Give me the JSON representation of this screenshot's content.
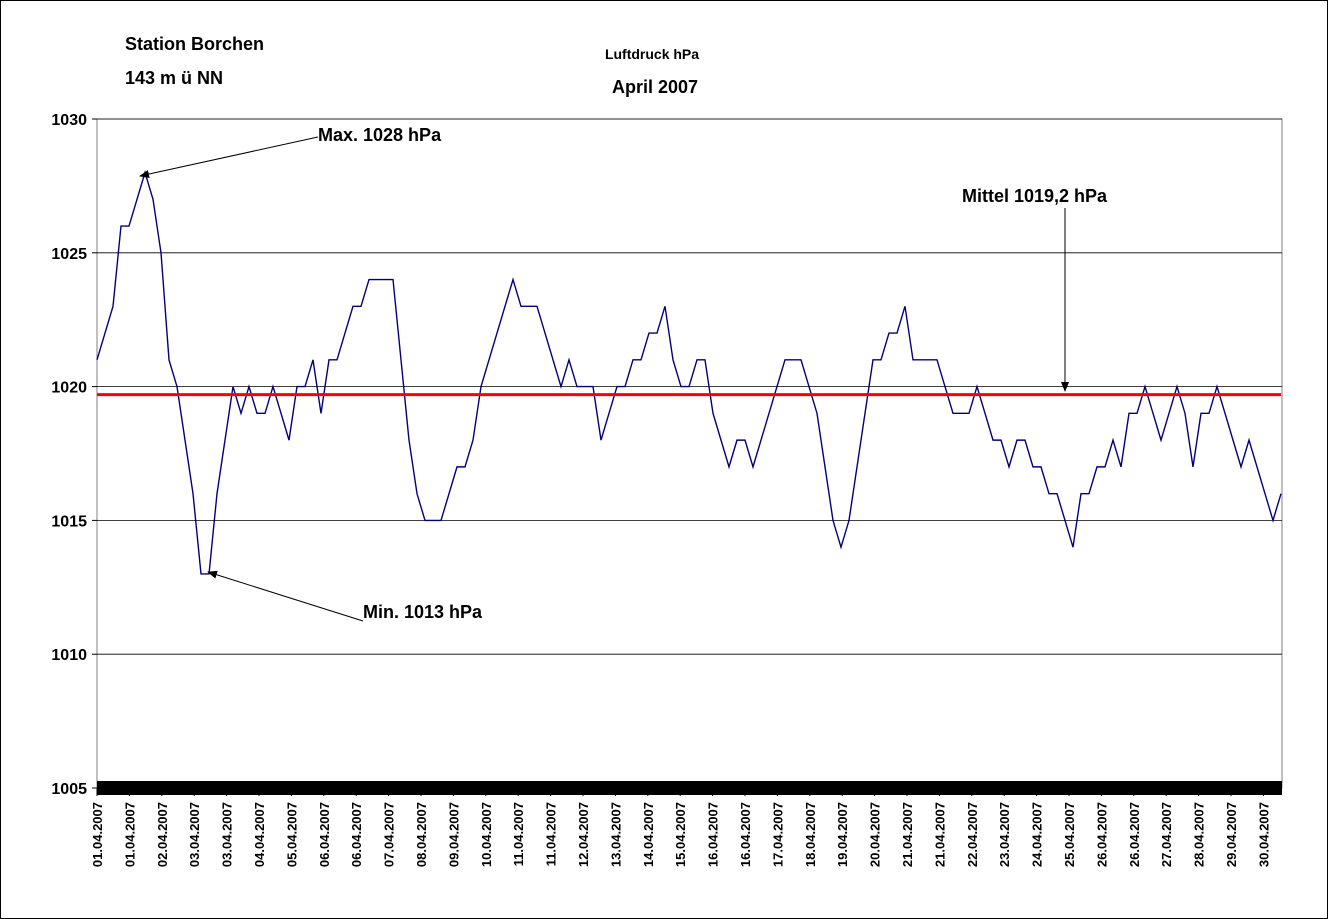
{
  "chart_data": {
    "type": "line",
    "title": "Luftdruck hPa",
    "subtitle": "April 2007",
    "station": [
      "Station Borchen",
      "143 m ü NN"
    ],
    "annotations": [
      "Max. 1028 hPa",
      "Min. 1013 hPa",
      "Mittel 1019,2 hPa"
    ],
    "reference_line": {
      "value": 1019.7,
      "color": "#ff0000"
    },
    "color": "#000080",
    "grid": true,
    "ylim": [
      1005,
      1030
    ],
    "yticks": [
      1005,
      1010,
      1015,
      1020,
      1025,
      1030
    ],
    "xlim": [
      0,
      148
    ],
    "xticks": [
      {
        "value": 0,
        "label": "01.04.2007"
      },
      {
        "value": 4.05,
        "label": "01.04.2007"
      },
      {
        "value": 8.1,
        "label": "02.04.2007"
      },
      {
        "value": 12.15,
        "label": "03.04.2007"
      },
      {
        "value": 16.2,
        "label": "03.04.2007"
      },
      {
        "value": 20.25,
        "label": "04.04.2007"
      },
      {
        "value": 24.3,
        "label": "05.04.2007"
      },
      {
        "value": 28.35,
        "label": "06.04.2007"
      },
      {
        "value": 32.4,
        "label": "06.04.2007"
      },
      {
        "value": 36.45,
        "label": "07.04.2007"
      },
      {
        "value": 40.5,
        "label": "08.04.2007"
      },
      {
        "value": 44.55,
        "label": "09.04.2007"
      },
      {
        "value": 48.6,
        "label": "10.04.2007"
      },
      {
        "value": 52.65,
        "label": "11.04.2007"
      },
      {
        "value": 56.7,
        "label": "11.04.2007"
      },
      {
        "value": 60.75,
        "label": "12.04.2007"
      },
      {
        "value": 64.8,
        "label": "13.04.2007"
      },
      {
        "value": 68.85,
        "label": "14.04.2007"
      },
      {
        "value": 72.9,
        "label": "15.04.2007"
      },
      {
        "value": 76.95,
        "label": "16.04.2007"
      },
      {
        "value": 81,
        "label": "16.04.2007"
      },
      {
        "value": 85.05,
        "label": "17.04.2007"
      },
      {
        "value": 89.1,
        "label": "18.04.2007"
      },
      {
        "value": 93.15,
        "label": "19.04.2007"
      },
      {
        "value": 97.2,
        "label": "20.04.2007"
      },
      {
        "value": 101.25,
        "label": "21.04.2007"
      },
      {
        "value": 105.3,
        "label": "21.04.2007"
      },
      {
        "value": 109.35,
        "label": "22.04.2007"
      },
      {
        "value": 113.4,
        "label": "23.04.2007"
      },
      {
        "value": 117.45,
        "label": "24.04.2007"
      },
      {
        "value": 121.5,
        "label": "25.04.2007"
      },
      {
        "value": 125.55,
        "label": "26.04.2007"
      },
      {
        "value": 129.6,
        "label": "26.04.2007"
      },
      {
        "value": 133.65,
        "label": "27.04.2007"
      },
      {
        "value": 137.7,
        "label": "28.04.2007"
      },
      {
        "value": 141.75,
        "label": "29.04.2007"
      },
      {
        "value": 145.8,
        "label": "30.04.2007"
      }
    ],
    "values": [
      1021,
      1022,
      1023,
      1026,
      1026,
      1027,
      1028,
      1027,
      1025,
      1021,
      1020,
      1018,
      1016,
      1013,
      1013,
      1016,
      1018,
      1020,
      1019,
      1020,
      1019,
      1019,
      1020,
      1019,
      1018,
      1020,
      1020,
      1021,
      1019,
      1021,
      1021,
      1022,
      1023,
      1023,
      1024,
      1024,
      1024,
      1024,
      1021,
      1018,
      1016,
      1015,
      1015,
      1015,
      1016,
      1017,
      1017,
      1018,
      1020,
      1021,
      1022,
      1023,
      1024,
      1023,
      1023,
      1023,
      1022,
      1021,
      1020,
      1021,
      1020,
      1020,
      1020,
      1018,
      1019,
      1020,
      1020,
      1021,
      1021,
      1022,
      1022,
      1023,
      1021,
      1020,
      1020,
      1021,
      1021,
      1019,
      1018,
      1017,
      1018,
      1018,
      1017,
      1018,
      1019,
      1020,
      1021,
      1021,
      1021,
      1020,
      1019,
      1017,
      1015,
      1014,
      1015,
      1017,
      1019,
      1021,
      1021,
      1022,
      1022,
      1023,
      1021,
      1021,
      1021,
      1021,
      1020,
      1019,
      1019,
      1019,
      1020,
      1019,
      1018,
      1018,
      1017,
      1018,
      1018,
      1017,
      1017,
      1016,
      1016,
      1015,
      1014,
      1016,
      1016,
      1017,
      1017,
      1018,
      1017,
      1019,
      1019,
      1020,
      1019,
      1018,
      1019,
      1020,
      1019,
      1017,
      1019,
      1019,
      1020,
      1019,
      1018,
      1017,
      1018,
      1017,
      1016,
      1015,
      1016
    ]
  }
}
